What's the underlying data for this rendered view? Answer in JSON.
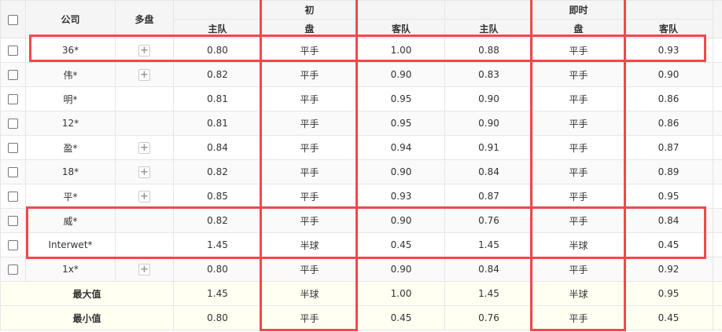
{
  "header": {
    "company": "公司",
    "multi": "多盘",
    "initial_top": "初",
    "initial_bottom": "盘",
    "live_top": "即时",
    "live_bottom": "盘",
    "home": "主队",
    "away": "客队"
  },
  "rows": [
    {
      "company": "36*",
      "multi": true,
      "ih": "0.80",
      "ip": "平手",
      "ia": "1.00",
      "lh": "0.88",
      "lp": "平手",
      "la": "0.93"
    },
    {
      "company": "伟*",
      "multi": true,
      "ih": "0.82",
      "ip": "平手",
      "ia": "0.90",
      "lh": "0.83",
      "lp": "平手",
      "la": "0.90"
    },
    {
      "company": "明*",
      "multi": false,
      "ih": "0.81",
      "ip": "平手",
      "ia": "0.95",
      "lh": "0.90",
      "lp": "平手",
      "la": "0.86"
    },
    {
      "company": "12*",
      "multi": false,
      "ih": "0.81",
      "ip": "平手",
      "ia": "0.95",
      "lh": "0.90",
      "lp": "平手",
      "la": "0.86"
    },
    {
      "company": "盈*",
      "multi": true,
      "ih": "0.84",
      "ip": "平手",
      "ia": "0.94",
      "lh": "0.91",
      "lp": "平手",
      "la": "0.87"
    },
    {
      "company": "18*",
      "multi": true,
      "ih": "0.82",
      "ip": "平手",
      "ia": "0.90",
      "lh": "0.84",
      "lp": "平手",
      "la": "0.89"
    },
    {
      "company": "平*",
      "multi": true,
      "ih": "0.85",
      "ip": "平手",
      "ia": "0.93",
      "lh": "0.87",
      "lp": "平手",
      "la": "0.95"
    },
    {
      "company": "威*",
      "multi": false,
      "ih": "0.82",
      "ip": "平手",
      "ia": "0.90",
      "lh": "0.76",
      "lp": "平手",
      "la": "0.84"
    },
    {
      "company": "Interwet*",
      "multi": false,
      "ih": "1.45",
      "ip": "半球",
      "ia": "0.45",
      "lh": "1.45",
      "lp": "半球",
      "la": "0.45"
    },
    {
      "company": "1x*",
      "multi": true,
      "ih": "0.80",
      "ip": "平手",
      "ia": "0.90",
      "lh": "0.84",
      "lp": "平手",
      "la": "0.92"
    }
  ],
  "summary": [
    {
      "label": "最大值",
      "ih": "1.45",
      "ip": "半球",
      "ia": "1.00",
      "lh": "1.45",
      "lp": "半球",
      "la": "0.95"
    },
    {
      "label": "最小值",
      "ih": "0.80",
      "ip": "平手",
      "ia": "0.45",
      "lh": "0.76",
      "lp": "平手",
      "la": "0.45"
    }
  ],
  "highlight_color": "#f0484e"
}
